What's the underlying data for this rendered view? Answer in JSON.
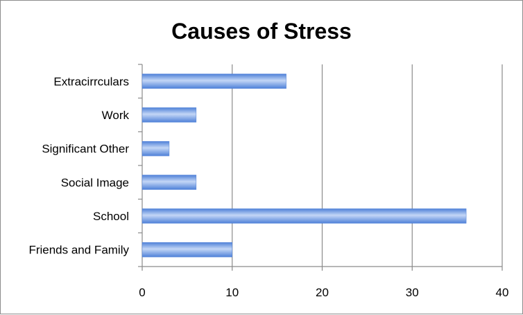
{
  "chart_data": {
    "type": "bar",
    "orientation": "horizontal",
    "title": "Causes of Stress",
    "xlabel": "",
    "ylabel": "",
    "categories": [
      "Friends and Family",
      "School",
      "Social Image",
      "Significant Other",
      "Work",
      "Extracirrculars"
    ],
    "values": [
      10,
      36,
      6,
      3,
      6,
      16
    ],
    "xlim": [
      0,
      40
    ],
    "xticks": [
      0,
      10,
      20,
      30,
      40
    ],
    "grid": "vertical",
    "legend": "none",
    "bar_color": "#4f81d8",
    "bar_highlight": "#c3d6f6"
  }
}
